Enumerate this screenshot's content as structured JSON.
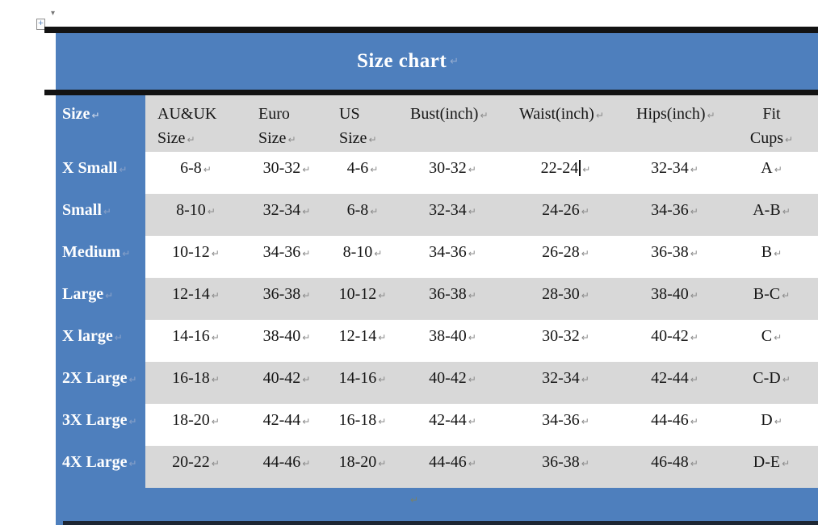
{
  "title": {
    "text": "Size chart",
    "eol_mark": "↵"
  },
  "table": {
    "headers": [
      "Size",
      "AU&UK\nSize",
      "Euro\nSize",
      "US\nSize",
      "Bust(inch)",
      "Waist(inch)",
      "Hips(inch)",
      "Fit\nCups"
    ],
    "rows": [
      {
        "label": "X Small",
        "values": [
          "6-8",
          "30-32",
          "4-6",
          "30-32",
          "22-24",
          "32-34",
          "A"
        ]
      },
      {
        "label": "Small",
        "values": [
          "8-10",
          "32-34",
          "6-8",
          "32-34",
          "24-26",
          "34-36",
          "A-B"
        ]
      },
      {
        "label": "Medium",
        "values": [
          "10-12",
          "34-36",
          "8-10",
          "34-36",
          "26-28",
          "36-38",
          "B"
        ]
      },
      {
        "label": "Large",
        "values": [
          "12-14",
          "36-38",
          "10-12",
          "36-38",
          "28-30",
          "38-40",
          "B-C"
        ]
      },
      {
        "label": "X large",
        "values": [
          "14-16",
          "38-40",
          "12-14",
          "38-40",
          "30-32",
          "40-42",
          "C"
        ]
      },
      {
        "label": "2X Large",
        "values": [
          "16-18",
          "40-42",
          "14-16",
          "40-42",
          "32-34",
          "42-44",
          "C-D"
        ]
      },
      {
        "label": "3X Large",
        "values": [
          "18-20",
          "42-44",
          "16-18",
          "42-44",
          "34-36",
          "44-46",
          "D"
        ]
      },
      {
        "label": "4X Large",
        "values": [
          "20-22",
          "44-46",
          "18-20",
          "44-46",
          "36-38",
          "46-48",
          "D-E"
        ]
      }
    ],
    "end_of_cell_mark": "↵",
    "cursor": {
      "row": 0,
      "col": 4
    }
  },
  "below_table_mark": "↵",
  "margin_icons": {
    "table_handle_glyph": "+",
    "paragraph_mark_glyph": "▾"
  },
  "colors": {
    "accent_blue": "#4E7FBD",
    "band_gray": "#D8D8D8",
    "divider_black": "#131313",
    "mark_gray": "#8a8a8a"
  }
}
